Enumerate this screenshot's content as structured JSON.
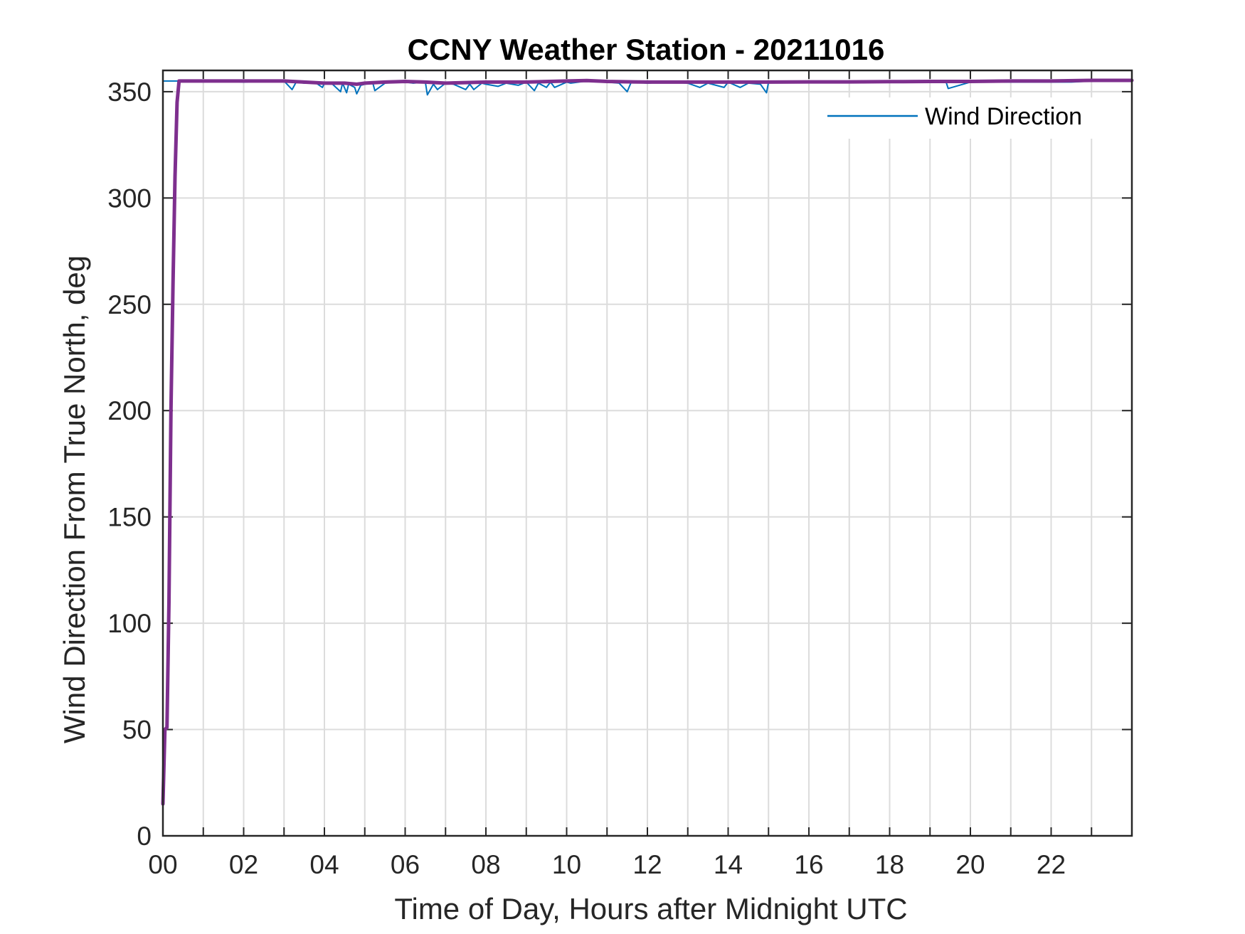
{
  "chart_data": {
    "type": "line",
    "title": "CCNY Weather Station - 20211016",
    "xlabel": "Time of Day, Hours after Midnight UTC",
    "ylabel": "Wind Direction From True North, deg",
    "xlim": [
      0,
      24
    ],
    "ylim": [
      0,
      360
    ],
    "x_ticks": [
      0,
      2,
      4,
      6,
      8,
      10,
      12,
      14,
      16,
      18,
      20,
      22
    ],
    "x_tick_labels": [
      "00",
      "02",
      "04",
      "06",
      "08",
      "10",
      "12",
      "14",
      "16",
      "18",
      "20",
      "22"
    ],
    "y_ticks": [
      0,
      50,
      100,
      150,
      200,
      250,
      300,
      350
    ],
    "y_tick_labels": [
      "0",
      "50",
      "100",
      "150",
      "200",
      "250",
      "300",
      "350"
    ],
    "grid": true,
    "legend": {
      "position": "top-right",
      "entries": [
        "Wind Direction"
      ]
    },
    "series": [
      {
        "name": "Wind Direction",
        "color": "#0072BD",
        "x": [
          0,
          0.05,
          0.1,
          0.2,
          0.3,
          0.4,
          0.5,
          1.0,
          1.5,
          2.0,
          2.5,
          3.0,
          3.2,
          3.3,
          3.5,
          3.8,
          3.95,
          4.0,
          4.2,
          4.4,
          4.45,
          4.55,
          4.6,
          4.75,
          4.8,
          4.9,
          5.0,
          5.2,
          5.25,
          5.5,
          5.8,
          6.0,
          6.2,
          6.5,
          6.55,
          6.7,
          6.8,
          7.0,
          7.2,
          7.5,
          7.6,
          7.7,
          7.9,
          8.0,
          8.3,
          8.5,
          8.8,
          9.0,
          9.2,
          9.3,
          9.5,
          9.6,
          9.7,
          10.0,
          10.1,
          10.5,
          10.6,
          11.0,
          11.3,
          11.5,
          11.6,
          12.0,
          12.5,
          13.0,
          13.3,
          13.5,
          13.9,
          14.0,
          14.3,
          14.5,
          14.8,
          14.95,
          15.0,
          15.5,
          16.0,
          16.5,
          17.0,
          17.5,
          18.0,
          18.5,
          19.0,
          19.4,
          19.45,
          20.0,
          20.5,
          21.0,
          21.5,
          22.0,
          22.5,
          23.0,
          23.5,
          24.0
        ],
        "y": [
          355,
          355,
          355,
          355,
          355,
          355,
          355,
          355,
          355,
          354.5,
          355,
          355,
          351,
          354.5,
          354,
          354,
          352,
          354,
          353.5,
          350,
          354,
          349.5,
          353.5,
          352,
          349,
          353,
          353.5,
          354,
          350.5,
          354,
          354.5,
          354.5,
          354,
          354.5,
          348.5,
          353.5,
          351,
          354,
          353.5,
          351,
          353.5,
          351,
          354,
          353.5,
          352.5,
          354,
          353,
          354.5,
          350.5,
          354,
          352,
          354.5,
          352,
          354.5,
          354,
          355,
          355,
          354.5,
          354,
          350,
          354.5,
          354,
          354.5,
          354,
          352,
          354,
          352,
          354.5,
          352,
          354,
          353.5,
          349.5,
          354.5,
          354.5,
          354.5,
          354.5,
          354.5,
          354.5,
          354.5,
          354.5,
          354.5,
          354.5,
          351.5,
          354.5,
          354.5,
          354.5,
          354.5,
          354.5,
          354.5,
          355,
          355,
          355
        ]
      },
      {
        "color": "#7E2F8E",
        "x": [
          0,
          0.05,
          0.1,
          0.15,
          0.2,
          0.25,
          0.3,
          0.35,
          0.4,
          0.5,
          1.0,
          2.0,
          3.0,
          3.5,
          4.0,
          4.5,
          4.8,
          5.0,
          5.5,
          6.0,
          6.5,
          7.0,
          8.0,
          9.0,
          10.0,
          10.5,
          11.0,
          12.0,
          13.0,
          14.0,
          15.0,
          16.0,
          17.0,
          18.0,
          19.0,
          20.0,
          21.0,
          22.0,
          23.0,
          24.0
        ],
        "y": [
          15,
          50,
          51,
          110,
          200,
          260,
          310,
          345,
          355,
          355,
          355,
          355,
          355,
          354.5,
          354,
          354,
          353.5,
          354,
          354.5,
          354.8,
          354.5,
          354,
          354.5,
          354.5,
          355,
          355.2,
          354.8,
          354.5,
          354.5,
          354.5,
          354.5,
          354.6,
          354.6,
          354.7,
          354.8,
          354.8,
          355,
          355,
          355.3,
          355.3
        ]
      }
    ]
  }
}
